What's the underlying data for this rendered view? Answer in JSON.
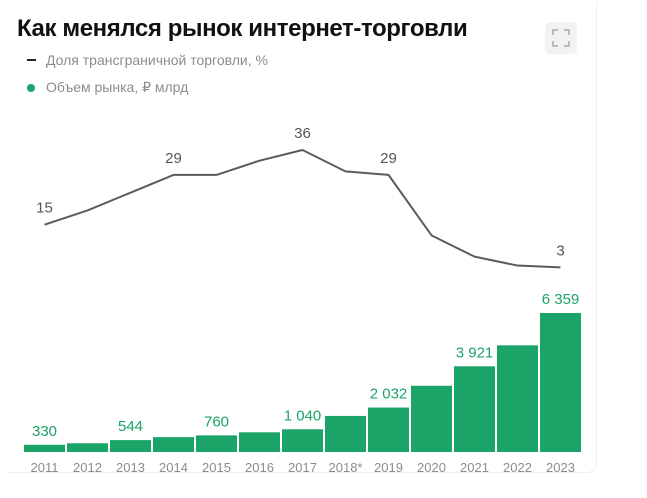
{
  "title": "Как менялся рынок интернет-торговли",
  "legend": [
    {
      "label": "Доля трансграничной торговли, %",
      "marker": "line",
      "color": "#222222"
    },
    {
      "label": "Объем рынка, ₽ млрд",
      "marker": "dot",
      "color": "#1aa468"
    }
  ],
  "expand_icon": "expand-icon",
  "colors": {
    "bar": "#1aa468",
    "line": "#5c5c5c",
    "bar_label": "#1aa468",
    "line_label": "#555555",
    "tick": "#8c8c8c"
  },
  "chart_data": {
    "type": "bar",
    "categories": [
      "2011",
      "2012",
      "2013",
      "2014",
      "2015",
      "2016",
      "2017",
      "2018*",
      "2019",
      "2020",
      "2021",
      "2022",
      "2023"
    ],
    "series": [
      {
        "name": "Объем рынка, ₽ млрд",
        "type": "bar",
        "values": [
          330,
          400,
          544,
          680,
          760,
          900,
          1040,
          1650,
          2032,
          3030,
          3921,
          4880,
          6359
        ],
        "labels": [
          "330",
          "",
          "544",
          "",
          "760",
          "",
          "1 040",
          "",
          "2 032",
          "",
          "3 921",
          "",
          "6 359"
        ]
      },
      {
        "name": "Доля трансграничной торговли, %",
        "type": "line",
        "values": [
          15,
          19,
          24,
          29,
          29,
          33,
          36,
          30,
          29,
          12,
          6,
          3.5,
          3
        ],
        "labels": [
          "15",
          "",
          "",
          "29",
          "",
          "",
          "36",
          "",
          "29",
          "",
          "",
          "",
          "3"
        ]
      }
    ],
    "xlabel": "",
    "ylabel": "",
    "grid": false,
    "legend_position": "top-left"
  }
}
